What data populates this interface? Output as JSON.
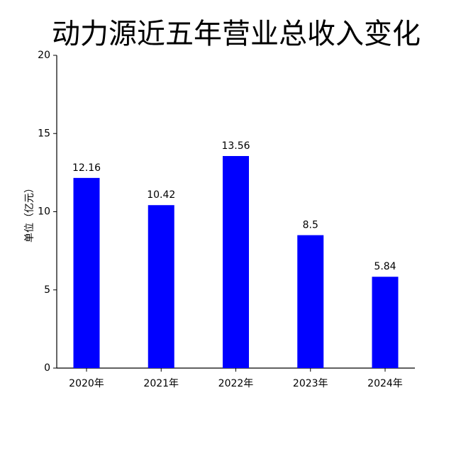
{
  "chart_data": {
    "type": "bar",
    "title": "动力源近五年营业总收入变化",
    "y_label": "单位（亿元）",
    "categories": [
      "2020年",
      "2021年",
      "2022年",
      "2023年",
      "2024年"
    ],
    "values": [
      12.16,
      10.42,
      13.56,
      8.5,
      5.84
    ],
    "color": "#0000ff",
    "ylim": [
      0,
      20
    ],
    "yticks": [
      0,
      5,
      10,
      15,
      20
    ],
    "grid": false
  }
}
